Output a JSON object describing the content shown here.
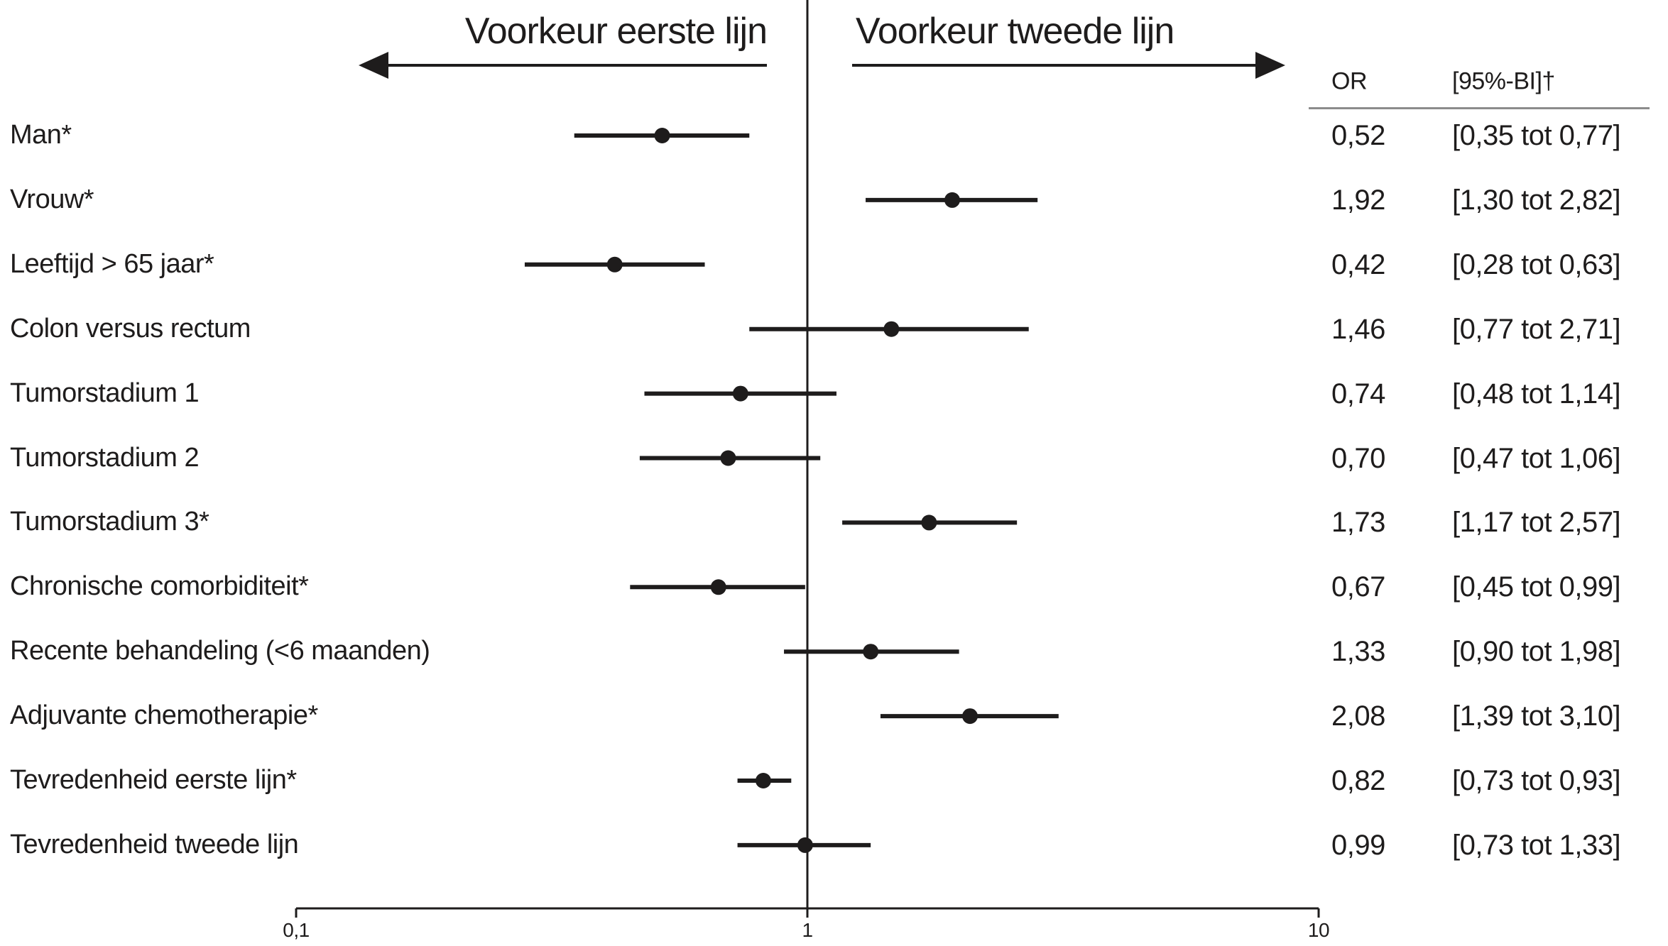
{
  "header": {
    "left_title": "Voorkeur eerste lijn",
    "right_title": "Voorkeur tweede lijn"
  },
  "table": {
    "or_header": "OR",
    "ci_header": "[95%-BI]†"
  },
  "chart_data": {
    "type": "scatter",
    "variant": "forest-plot",
    "x_axis": {
      "scale": "log10",
      "min": 0.1,
      "max": 10,
      "ticks": [
        {
          "value": 0.1,
          "label": "0,1"
        },
        {
          "value": 1,
          "label": "1"
        },
        {
          "value": 10,
          "label": "10"
        }
      ]
    },
    "reference_line": 1,
    "rows": [
      {
        "label": "Man*",
        "or": 0.52,
        "ci_low": 0.35,
        "ci_high": 0.77,
        "or_text": "0,52",
        "ci_text": "[0,35 tot 0,77]"
      },
      {
        "label": "Vrouw*",
        "or": 1.92,
        "ci_low": 1.3,
        "ci_high": 2.82,
        "or_text": "1,92",
        "ci_text": "[1,30 tot 2,82]"
      },
      {
        "label": "Leeftijd > 65 jaar*",
        "or": 0.42,
        "ci_low": 0.28,
        "ci_high": 0.63,
        "or_text": "0,42",
        "ci_text": "[0,28 tot 0,63]"
      },
      {
        "label": "Colon versus rectum",
        "or": 1.46,
        "ci_low": 0.77,
        "ci_high": 2.71,
        "or_text": "1,46",
        "ci_text": "[0,77 tot 2,71]"
      },
      {
        "label": "Tumorstadium 1",
        "or": 0.74,
        "ci_low": 0.48,
        "ci_high": 1.14,
        "or_text": "0,74",
        "ci_text": "[0,48 tot 1,14]"
      },
      {
        "label": "Tumorstadium 2",
        "or": 0.7,
        "ci_low": 0.47,
        "ci_high": 1.06,
        "or_text": "0,70",
        "ci_text": "[0,47 tot 1,06]"
      },
      {
        "label": "Tumorstadium 3*",
        "or": 1.73,
        "ci_low": 1.17,
        "ci_high": 2.57,
        "or_text": "1,73",
        "ci_text": "[1,17 tot 2,57]"
      },
      {
        "label": "Chronische comorbiditeit*",
        "or": 0.67,
        "ci_low": 0.45,
        "ci_high": 0.99,
        "or_text": "0,67",
        "ci_text": "[0,45 tot 0,99]"
      },
      {
        "label": "Recente behandeling (<6 maanden)",
        "or": 1.33,
        "ci_low": 0.9,
        "ci_high": 1.98,
        "or_text": "1,33",
        "ci_text": "[0,90 tot 1,98]"
      },
      {
        "label": "Adjuvante chemotherapie*",
        "or": 2.08,
        "ci_low": 1.39,
        "ci_high": 3.1,
        "or_text": "2,08",
        "ci_text": "[1,39 tot 3,10]"
      },
      {
        "label": "Tevredenheid eerste lijn*",
        "or": 0.82,
        "ci_low": 0.73,
        "ci_high": 0.93,
        "or_text": "0,82",
        "ci_text": "[0,73 tot 0,93]"
      },
      {
        "label": "Tevredenheid tweede lijn",
        "or": 0.99,
        "ci_low": 0.73,
        "ci_high": 1.33,
        "or_text": "0,99",
        "ci_text": "[0,73 tot 1,33]"
      }
    ],
    "colors": {
      "ink": "#1e1c1c",
      "header_rule": "#8c8c8c"
    }
  }
}
